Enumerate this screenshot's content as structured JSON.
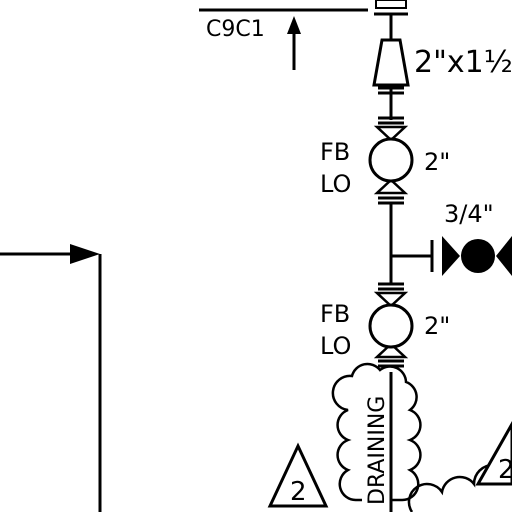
{
  "labels": {
    "line_id": "C9C1",
    "reducer_size": "2\"x1½",
    "valve1_type": "FB",
    "valve1_pos": "LO",
    "valve1_size": "2\"",
    "branch_size": "3/4\"",
    "valve2_type": "FB",
    "valve2_pos": "LO",
    "valve2_size": "2\"",
    "cloud_note": "DRAINING",
    "rev_left": "2",
    "rev_right": "2"
  }
}
